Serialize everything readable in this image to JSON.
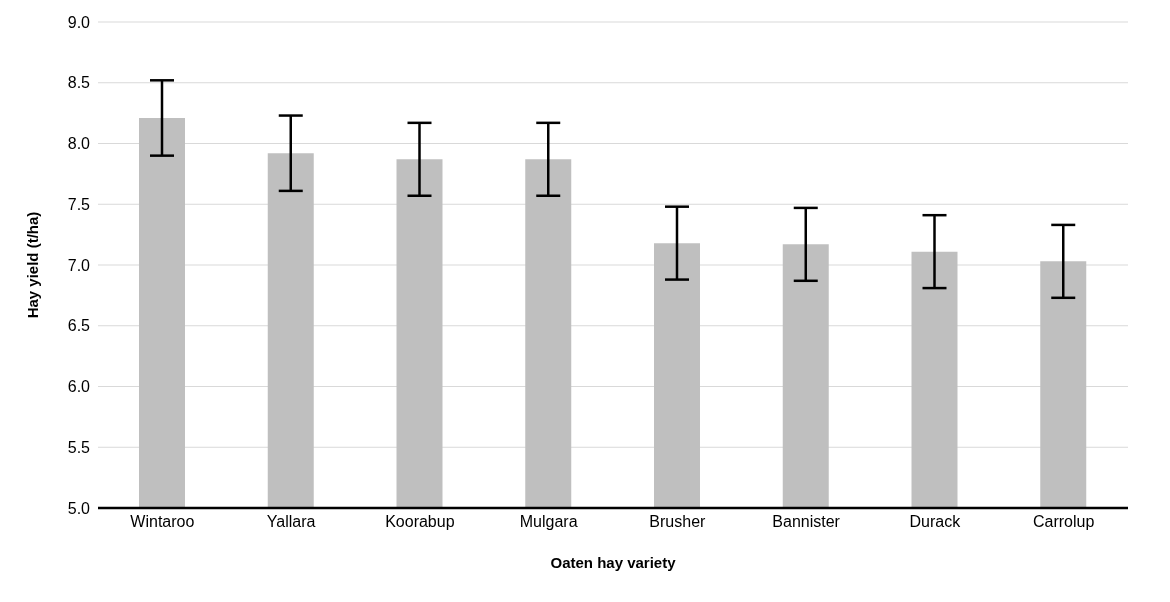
{
  "chart_data": {
    "type": "bar",
    "xlabel": "Oaten hay variety",
    "ylabel": "Hay yield (t/ha)",
    "categories": [
      "Wintaroo",
      "Yallara",
      "Koorabup",
      "Mulgara",
      "Brusher",
      "Bannister",
      "Durack",
      "Carrolup"
    ],
    "values": [
      8.21,
      7.92,
      7.87,
      7.87,
      7.18,
      7.17,
      7.11,
      7.03
    ],
    "errors": [
      0.31,
      0.31,
      0.3,
      0.3,
      0.3,
      0.3,
      0.3,
      0.3
    ],
    "color": "#bfbfbf",
    "ylim": [
      5,
      9
    ],
    "yticks": [
      {
        "value": 5,
        "label": "5.0"
      },
      5.5,
      {
        "value": 6,
        "label": "6.0"
      },
      6.5,
      {
        "value": 7,
        "label": "7.0"
      },
      7.5,
      {
        "value": 8,
        "label": "8.0"
      },
      8.5,
      {
        "value": 9,
        "label": "9.0"
      }
    ],
    "grid": "y"
  }
}
